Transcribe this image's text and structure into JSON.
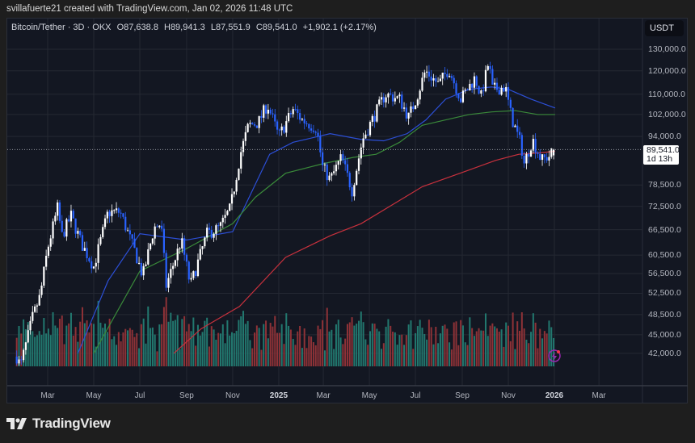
{
  "credit": "svillafuerte21 created with TradingView.com, Jan 02, 2026 11:48 UTC",
  "legend": {
    "symbol": "Bitcoin/Tether · 3D · OKX",
    "open": "O87,638.8",
    "high": "H89,941.3",
    "low": "L87,551.9",
    "close": "C89,541.0",
    "change": "+1,902.1 (+2.17%)"
  },
  "currency": "USDT",
  "last_price": {
    "value": "89,541.0",
    "countdown": "1d 13h"
  },
  "logo": "TradingView",
  "icons": {
    "alert": "lightning-icon",
    "logo": "tradingview-logo-icon"
  },
  "colors": {
    "up": "#ffffff",
    "down": "#2962ff",
    "vol_up": "#22786f",
    "vol_down": "#8e3237",
    "ma_fast": "#2c4fd6",
    "ma_mid": "#3a8a3a",
    "ma_slow": "#c8313d",
    "background": "#131722"
  },
  "chart_data": {
    "type": "candlestick",
    "interval": "3D",
    "y_scale": "log",
    "ylim": [
      39000,
      135000
    ],
    "y_ticks": [
      "130,000.0",
      "120,000.0",
      "110,000.0",
      "102,000.0",
      "94,000.0",
      "78,500.0",
      "72,500.0",
      "66,500.0",
      "60,500.0",
      "56,500.0",
      "52,500.0",
      "48,500.0",
      "45,000.0",
      "42,000.0"
    ],
    "x_ticks": [
      {
        "label": "Mar",
        "date": "2024-03-01"
      },
      {
        "label": "May",
        "date": "2024-05-01"
      },
      {
        "label": "Jul",
        "date": "2024-07-01"
      },
      {
        "label": "Sep",
        "date": "2024-09-01"
      },
      {
        "label": "Nov",
        "date": "2024-11-01"
      },
      {
        "label": "2025",
        "date": "2025-01-01",
        "year": true
      },
      {
        "label": "Mar",
        "date": "2025-03-01"
      },
      {
        "label": "May",
        "date": "2025-05-01"
      },
      {
        "label": "Jul",
        "date": "2025-07-01"
      },
      {
        "label": "Sep",
        "date": "2025-09-01"
      },
      {
        "label": "Nov",
        "date": "2025-11-01"
      },
      {
        "label": "2026",
        "date": "2026-01-01",
        "year": true
      },
      {
        "label": "Mar",
        "date": "2026-03-01"
      }
    ],
    "close_path": [
      [
        "2024-01-20",
        41500
      ],
      [
        "2024-01-25",
        40000
      ],
      [
        "2024-02-10",
        48000
      ],
      [
        "2024-02-20",
        52000
      ],
      [
        "2024-03-01",
        62000
      ],
      [
        "2024-03-14",
        72000
      ],
      [
        "2024-03-20",
        65000
      ],
      [
        "2024-04-01",
        70000
      ],
      [
        "2024-04-15",
        63000
      ],
      [
        "2024-05-01",
        58000
      ],
      [
        "2024-05-20",
        71000
      ],
      [
        "2024-06-05",
        71000
      ],
      [
        "2024-06-25",
        61000
      ],
      [
        "2024-07-05",
        56000
      ],
      [
        "2024-07-20",
        67000
      ],
      [
        "2024-07-29",
        68000
      ],
      [
        "2024-08-05",
        54000
      ],
      [
        "2024-08-25",
        64000
      ],
      [
        "2024-09-06",
        54000
      ],
      [
        "2024-09-28",
        65500
      ],
      [
        "2024-10-15",
        67000
      ],
      [
        "2024-10-29",
        72000
      ],
      [
        "2024-11-11",
        88000
      ],
      [
        "2024-11-22",
        98000
      ],
      [
        "2024-12-05",
        99000
      ],
      [
        "2024-12-17",
        106000
      ],
      [
        "2025-01-01",
        94000
      ],
      [
        "2025-01-20",
        104000
      ],
      [
        "2025-02-01",
        100000
      ],
      [
        "2025-02-20",
        97000
      ],
      [
        "2025-02-28",
        84000
      ],
      [
        "2025-03-10",
        80000
      ],
      [
        "2025-03-25",
        87000
      ],
      [
        "2025-04-08",
        77000
      ],
      [
        "2025-04-22",
        93000
      ],
      [
        "2025-05-10",
        103000
      ],
      [
        "2025-05-22",
        110000
      ],
      [
        "2025-06-10",
        108000
      ],
      [
        "2025-06-22",
        101000
      ],
      [
        "2025-07-03",
        109000
      ],
      [
        "2025-07-14",
        120000
      ],
      [
        "2025-08-01",
        114000
      ],
      [
        "2025-08-14",
        121000
      ],
      [
        "2025-08-30",
        108000
      ],
      [
        "2025-09-18",
        117000
      ],
      [
        "2025-09-26",
        109000
      ],
      [
        "2025-10-06",
        124000
      ],
      [
        "2025-10-11",
        112000
      ],
      [
        "2025-10-28",
        113000
      ],
      [
        "2025-11-05",
        101000
      ],
      [
        "2025-11-18",
        91000
      ],
      [
        "2025-11-22",
        85000
      ],
      [
        "2025-12-03",
        93000
      ],
      [
        "2025-12-15",
        86000
      ],
      [
        "2025-12-25",
        87500
      ],
      [
        "2026-01-02",
        89541
      ]
    ],
    "last_candle": {
      "open": 87638.8,
      "high": 89941.3,
      "low": 87551.9,
      "close": 89541.0,
      "change": 1902.1,
      "change_pct": 2.17
    },
    "moving_averages": [
      {
        "color": "ma_fast",
        "points": [
          [
            "2024-04-10",
            42000
          ],
          [
            "2024-05-20",
            55000
          ],
          [
            "2024-07-01",
            65500
          ],
          [
            "2024-09-01",
            64000
          ],
          [
            "2024-11-01",
            66000
          ],
          [
            "2024-12-20",
            88000
          ],
          [
            "2025-01-20",
            92000
          ],
          [
            "2025-03-10",
            95000
          ],
          [
            "2025-04-20",
            93000
          ],
          [
            "2025-05-20",
            92500
          ],
          [
            "2025-06-20",
            95000
          ],
          [
            "2025-07-15",
            100000
          ],
          [
            "2025-08-10",
            108000
          ],
          [
            "2025-09-10",
            112000
          ],
          [
            "2025-10-10",
            113000
          ],
          [
            "2025-11-01",
            112000
          ],
          [
            "2025-12-01",
            108000
          ],
          [
            "2026-01-02",
            104500
          ]
        ]
      },
      {
        "color": "ma_mid",
        "points": [
          [
            "2024-05-01",
            42000
          ],
          [
            "2024-07-01",
            57000
          ],
          [
            "2024-09-01",
            62000
          ],
          [
            "2024-11-01",
            68000
          ],
          [
            "2024-12-01",
            75000
          ],
          [
            "2025-01-10",
            82000
          ],
          [
            "2025-03-01",
            85000
          ],
          [
            "2025-04-10",
            87000
          ],
          [
            "2025-05-10",
            88000
          ],
          [
            "2025-06-10",
            92000
          ],
          [
            "2025-07-10",
            98000
          ],
          [
            "2025-08-10",
            100000
          ],
          [
            "2025-09-10",
            102000
          ],
          [
            "2025-10-10",
            103000
          ],
          [
            "2025-11-10",
            103500
          ],
          [
            "2025-12-10",
            102000
          ],
          [
            "2026-01-02",
            102000
          ]
        ]
      },
      {
        "color": "ma_slow",
        "points": [
          [
            "2024-08-15",
            42000
          ],
          [
            "2024-09-20",
            46000
          ],
          [
            "2024-11-10",
            50000
          ],
          [
            "2025-01-10",
            60000
          ],
          [
            "2025-03-10",
            65000
          ],
          [
            "2025-04-20",
            68000
          ],
          [
            "2025-07-10",
            78000
          ],
          [
            "2025-09-10",
            83000
          ],
          [
            "2025-10-15",
            86000
          ],
          [
            "2025-11-15",
            88000
          ],
          [
            "2025-12-15",
            88500
          ],
          [
            "2026-01-02",
            89000
          ]
        ]
      }
    ]
  }
}
